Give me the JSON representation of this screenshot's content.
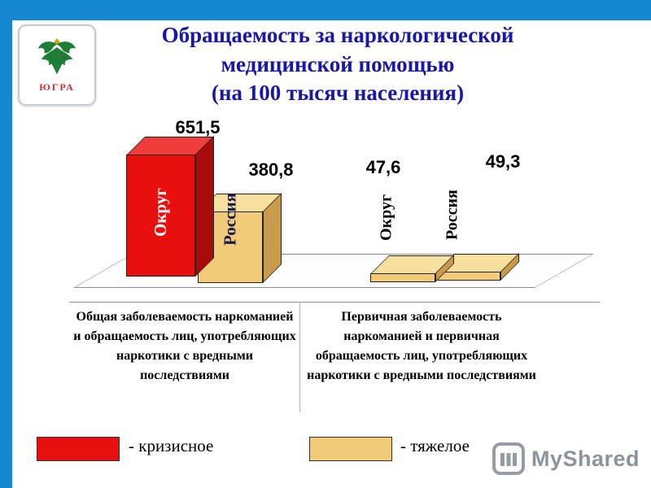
{
  "frame": {
    "accent_blue": "#1688d2"
  },
  "header": {
    "emblem_caption": "ЮГРА",
    "title_lines": [
      "Обращаемость за наркологической",
      "медицинской помощью",
      "(на 100 тысяч населения)"
    ],
    "title_color": "#1a16a8"
  },
  "chart_data": {
    "type": "bar",
    "title": "Обращаемость за наркологической медицинской помощью (на 100 тысяч населения)",
    "groups": [
      {
        "caption": "Общая заболеваемость наркоманией и обращаемость лиц, употребляющих наркотики с вредными последствиями",
        "bars": [
          {
            "category": "Округ",
            "value": 651.5,
            "value_label": "651,5",
            "status": "кризисное",
            "label_color": "#ffffff",
            "colors": {
              "front": "#e8100e",
              "top": "#ef3d3b",
              "side": "#a90b0b"
            }
          },
          {
            "category": "Россия",
            "value": 380.8,
            "value_label": "380,8",
            "status": "тяжелое",
            "label_color": "#191947",
            "colors": {
              "front": "#f2cb78",
              "top": "#f7dfa0",
              "side": "#c79b4b"
            }
          }
        ]
      },
      {
        "caption": "Первичная заболеваемость наркоманией и первичная обращаемость лиц, употребляющих наркотики с вредными последствиями",
        "bars": [
          {
            "category": "Округ",
            "value": 47.6,
            "value_label": "47,6",
            "status": "тяжелое",
            "label_color": "#000000",
            "colors": {
              "front": "#f2cb78",
              "top": "#f7dfa0",
              "side": "#c79b4b"
            }
          },
          {
            "category": "Россия",
            "value": 49.3,
            "value_label": "49,3",
            "status": "тяжелое",
            "label_color": "#000000",
            "colors": {
              "front": "#f2cb78",
              "top": "#f7dfa0",
              "side": "#c79b4b"
            }
          }
        ]
      }
    ],
    "legend": [
      {
        "label": "- кризисное",
        "swatch_color": "#e8100e"
      },
      {
        "label": "- тяжелое",
        "swatch_color": "#f2cb78"
      }
    ]
  },
  "footer": {
    "brand": "MyShared"
  }
}
